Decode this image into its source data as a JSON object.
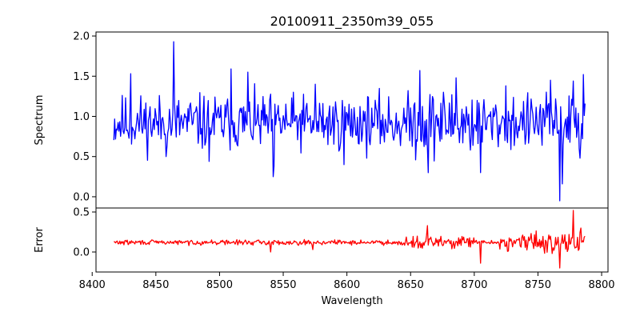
{
  "chart_data": {
    "type": "line",
    "title": "20100911_2350m39_055",
    "xlabel": "Wavelength",
    "x_range": [
      8417,
      8787
    ],
    "xlim": [
      8403,
      8805
    ],
    "x_ticks": [
      8400,
      8450,
      8500,
      8550,
      8600,
      8650,
      8700,
      8750,
      8800
    ],
    "x_tick_labels": [
      "8400",
      "8450",
      "8500",
      "8550",
      "8600",
      "8650",
      "8700",
      "8750",
      "8800"
    ],
    "panels": [
      {
        "name": "spectrum",
        "ylabel": "Spectrum",
        "ylim": [
          -0.14,
          2.05
        ],
        "y_ticks": [
          0.0,
          0.5,
          1.0,
          1.5,
          2.0
        ],
        "y_tick_labels": [
          "0.0",
          "0.5",
          "1.0",
          "1.5",
          "2.0"
        ],
        "color": "#0000ff",
        "baseline": 0.92,
        "noise": 0.17,
        "features": [
          {
            "x": 8464,
            "y": 1.93
          },
          {
            "x": 8458,
            "y": 0.5
          },
          {
            "x": 8430,
            "y": 1.53
          },
          {
            "x": 8509,
            "y": 1.59
          },
          {
            "x": 8492,
            "y": 0.44
          },
          {
            "x": 8522,
            "y": 1.55
          },
          {
            "x": 8542,
            "y": 0.25
          },
          {
            "x": 8543,
            "y": 0.38
          },
          {
            "x": 8575,
            "y": 1.4
          },
          {
            "x": 8598,
            "y": 0.4
          },
          {
            "x": 8657,
            "y": 1.57
          },
          {
            "x": 8664,
            "y": 0.3
          },
          {
            "x": 8686,
            "y": 1.48
          },
          {
            "x": 8705,
            "y": 0.3
          },
          {
            "x": 8725,
            "y": 1.38
          },
          {
            "x": 8760,
            "y": 1.45
          },
          {
            "x": 8767,
            "y": -0.05
          },
          {
            "x": 8769,
            "y": 0.16
          },
          {
            "x": 8778,
            "y": 1.44
          },
          {
            "x": 8783,
            "y": 0.48
          },
          {
            "x": 8786,
            "y": 1.52
          }
        ]
      },
      {
        "name": "error",
        "ylabel": "Error",
        "ylim": [
          -0.25,
          0.55
        ],
        "y_ticks": [
          0.0,
          0.5
        ],
        "y_tick_labels": [
          "0.0",
          "0.5"
        ],
        "color": "#ff0000",
        "baseline": 0.12,
        "noise": 0.015,
        "features": [
          {
            "x": 8540,
            "y": 0.0
          },
          {
            "x": 8573,
            "y": 0.03
          },
          {
            "x": 8663,
            "y": 0.33
          },
          {
            "x": 8705,
            "y": -0.14
          },
          {
            "x": 8767,
            "y": -0.2
          },
          {
            "x": 8778,
            "y": 0.52
          },
          {
            "x": 8784,
            "y": 0.3
          },
          {
            "x": 8782,
            "y": 0.02
          }
        ]
      }
    ]
  }
}
